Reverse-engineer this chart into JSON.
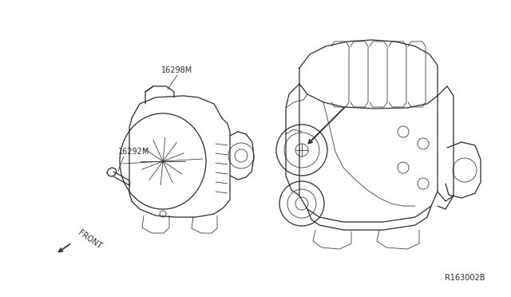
{
  "background_color": "#ffffff",
  "line_color": "#2a2a2a",
  "label_16298BM": "16298M",
  "label_16292M": "16292M",
  "label_front": "FRONT",
  "label_ref": "R163002B",
  "fig_width": 6.4,
  "fig_height": 3.72,
  "dpi": 100,
  "lw": 0.9,
  "lw_thin": 0.55,
  "lw_thick": 1.3
}
